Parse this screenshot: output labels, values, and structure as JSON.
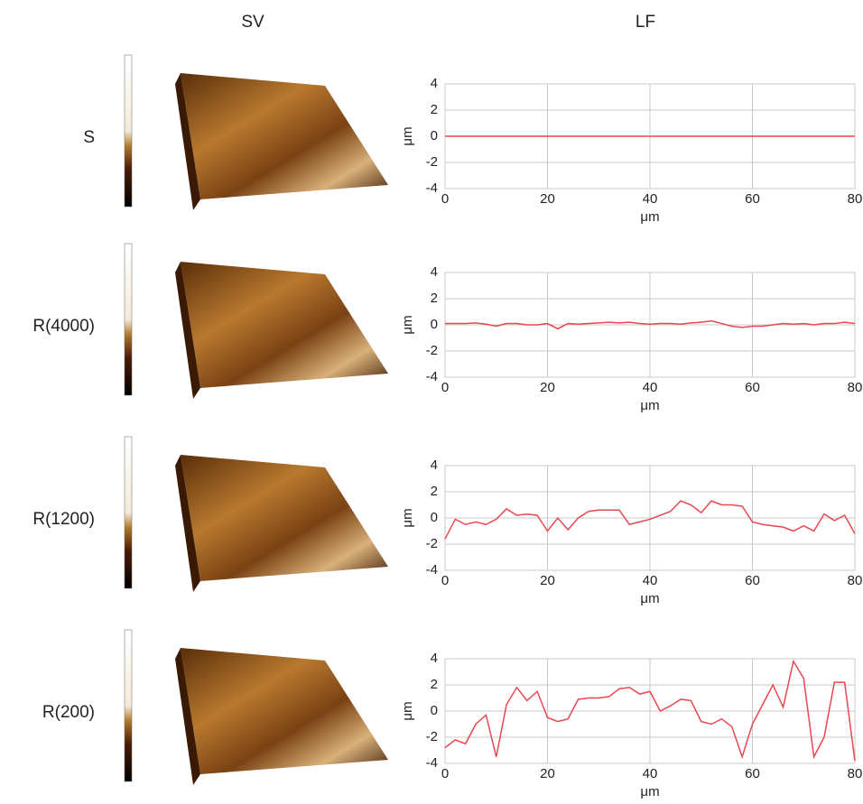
{
  "columns": [
    "SV",
    "LF"
  ],
  "chart_data": [
    {
      "type": "line",
      "label": "S",
      "xlabel": "μm",
      "ylabel": "μm",
      "x": [
        0,
        2,
        4,
        6,
        8,
        10,
        12,
        14,
        16,
        18,
        20,
        22,
        24,
        26,
        28,
        30,
        32,
        34,
        36,
        38,
        40,
        42,
        44,
        46,
        48,
        50,
        52,
        54,
        56,
        58,
        60,
        62,
        64,
        66,
        68,
        70,
        72,
        74,
        76,
        78,
        80
      ],
      "series": [
        {
          "color": "#e8474f",
          "values": [
            0,
            0,
            0,
            0,
            0,
            0,
            0,
            0,
            0,
            0,
            0,
            0,
            0,
            0,
            0,
            0,
            0,
            0,
            0,
            0,
            0,
            0,
            0,
            0,
            0,
            0,
            0,
            0,
            0,
            0,
            0,
            0,
            0,
            0,
            0,
            0,
            0,
            0,
            0,
            0,
            0
          ]
        }
      ],
      "xlim": [
        0,
        80
      ],
      "xticks": [
        0,
        20,
        40,
        60,
        80
      ],
      "ylim": [
        -4,
        4
      ],
      "yticks": [
        -4,
        -2,
        0,
        2,
        4
      ],
      "grid": true
    },
    {
      "type": "line",
      "label": "R(4000)",
      "xlabel": "μm",
      "ylabel": "μm",
      "x": [
        0,
        2,
        4,
        6,
        8,
        10,
        12,
        14,
        16,
        18,
        20,
        22,
        24,
        26,
        28,
        30,
        32,
        34,
        36,
        38,
        40,
        42,
        44,
        46,
        48,
        50,
        52,
        54,
        56,
        58,
        60,
        62,
        64,
        66,
        68,
        70,
        72,
        74,
        76,
        78,
        80
      ],
      "series": [
        {
          "color": "#e8474f",
          "values": [
            0.1,
            0.1,
            0.1,
            0.15,
            0.05,
            -0.1,
            0.1,
            0.1,
            0,
            0,
            0.1,
            -0.3,
            0.1,
            0.05,
            0.1,
            0.15,
            0.2,
            0.15,
            0.2,
            0.1,
            0.05,
            0.1,
            0.1,
            0.05,
            0.15,
            0.2,
            0.3,
            0.1,
            -0.1,
            -0.2,
            -0.1,
            -0.1,
            0,
            0.1,
            0.05,
            0.1,
            0,
            0.1,
            0.1,
            0.2,
            0.1
          ]
        }
      ],
      "xlim": [
        0,
        80
      ],
      "xticks": [
        0,
        20,
        40,
        60,
        80
      ],
      "ylim": [
        -4,
        4
      ],
      "yticks": [
        -4,
        -2,
        0,
        2,
        4
      ],
      "grid": true
    },
    {
      "type": "line",
      "label": "R(1200)",
      "xlabel": "μm",
      "ylabel": "μm",
      "x": [
        0,
        2,
        4,
        6,
        8,
        10,
        12,
        14,
        16,
        18,
        20,
        22,
        24,
        26,
        28,
        30,
        32,
        34,
        36,
        38,
        40,
        42,
        44,
        46,
        48,
        50,
        52,
        54,
        56,
        58,
        60,
        62,
        64,
        66,
        68,
        70,
        72,
        74,
        76,
        78,
        80
      ],
      "series": [
        {
          "color": "#e8474f",
          "values": [
            -1.6,
            -0.1,
            -0.5,
            -0.3,
            -0.5,
            -0.1,
            0.7,
            0.2,
            0.3,
            0.2,
            -1.0,
            0.0,
            -0.9,
            0.0,
            0.5,
            0.6,
            0.6,
            0.6,
            -0.5,
            -0.3,
            -0.1,
            0.2,
            0.5,
            1.3,
            1.0,
            0.4,
            1.3,
            1.0,
            1.0,
            0.9,
            -0.3,
            -0.5,
            -0.6,
            -0.7,
            -1.0,
            -0.6,
            -1.0,
            0.3,
            -0.2,
            0.2,
            -1.2
          ]
        }
      ],
      "xlim": [
        0,
        80
      ],
      "xticks": [
        0,
        20,
        40,
        60,
        80
      ],
      "ylim": [
        -4,
        4
      ],
      "yticks": [
        -4,
        -2,
        0,
        2,
        4
      ],
      "grid": true
    },
    {
      "type": "line",
      "label": "R(200)",
      "xlabel": "μm",
      "ylabel": "μm",
      "x": [
        0,
        2,
        4,
        6,
        8,
        10,
        12,
        14,
        16,
        18,
        20,
        22,
        24,
        26,
        28,
        30,
        32,
        34,
        36,
        38,
        40,
        42,
        44,
        46,
        48,
        50,
        52,
        54,
        56,
        58,
        60,
        62,
        64,
        66,
        68,
        70,
        72,
        74,
        76,
        78,
        80
      ],
      "series": [
        {
          "color": "#e8474f",
          "values": [
            -2.8,
            -2.2,
            -2.5,
            -1.0,
            -0.3,
            -3.5,
            0.5,
            1.8,
            0.8,
            1.5,
            -0.5,
            -0.8,
            -0.6,
            0.9,
            1.0,
            1.0,
            1.1,
            1.7,
            1.8,
            1.3,
            1.5,
            0.0,
            0.4,
            0.9,
            0.8,
            -0.8,
            -1.0,
            -0.6,
            -1.2,
            -3.5,
            -1.0,
            0.5,
            2.0,
            0.3,
            3.8,
            2.5,
            -3.5,
            -2.0,
            2.2,
            2.2,
            -3.8
          ]
        }
      ],
      "xlim": [
        0,
        80
      ],
      "xticks": [
        0,
        20,
        40,
        60,
        80
      ],
      "ylim": [
        -4,
        4
      ],
      "yticks": [
        -4,
        -2,
        0,
        2,
        4
      ],
      "grid": true
    }
  ]
}
